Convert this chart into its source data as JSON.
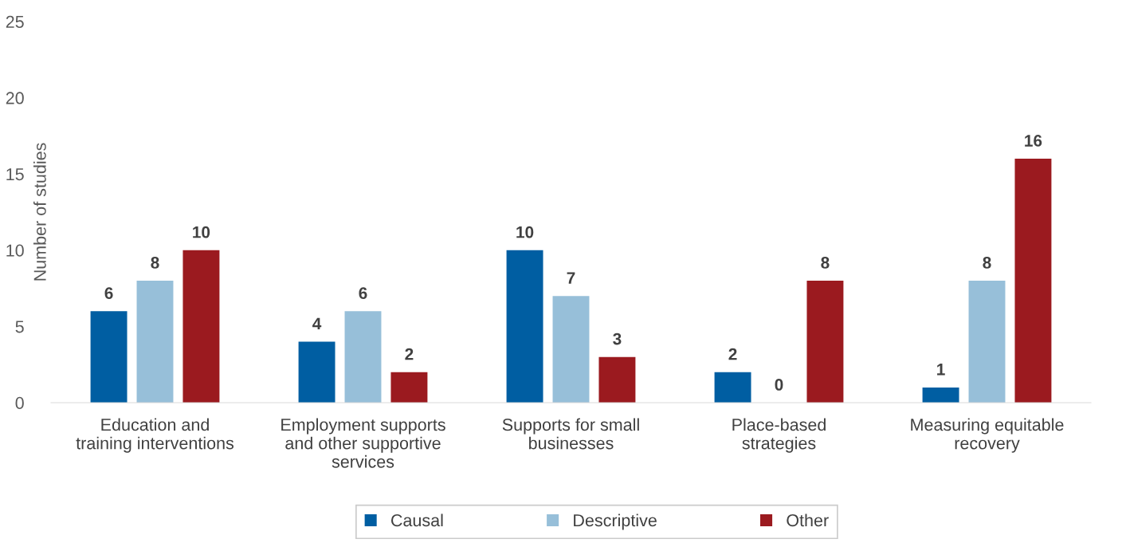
{
  "chart_data": {
    "type": "bar",
    "ylabel": "Number of studies",
    "categories": [
      "Education and\ntraining interventions",
      "Employment supports\nand other supportive\nservices",
      "Supports for small\nbusinesses",
      "Place-based\nstrategies",
      "Measuring equitable\nrecovery"
    ],
    "series": [
      {
        "name": "Causal",
        "color": "#005ea2",
        "values": [
          6,
          4,
          10,
          2,
          1
        ]
      },
      {
        "name": "Descriptive",
        "color": "#97bfd9",
        "values": [
          8,
          6,
          7,
          0,
          8
        ]
      },
      {
        "name": "Other",
        "color": "#9b1a1f",
        "values": [
          10,
          2,
          3,
          8,
          16
        ]
      }
    ],
    "ylim": [
      0,
      25
    ],
    "yticks": [
      0,
      5,
      10,
      15,
      20,
      25
    ],
    "grid": false,
    "legend": "bottom",
    "data_labels": true
  }
}
